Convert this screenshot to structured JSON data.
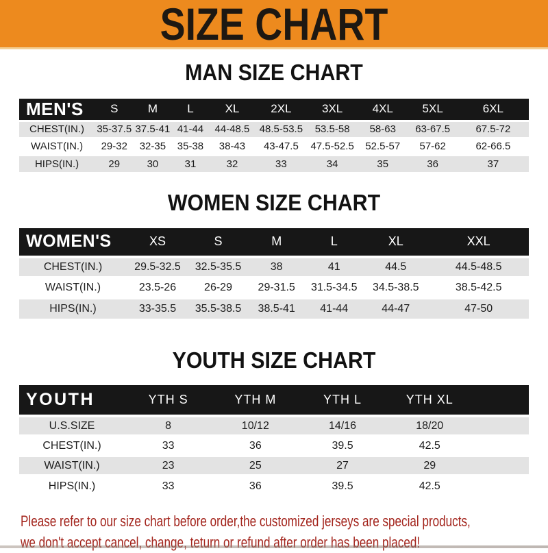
{
  "banner": {
    "title": "SIZE CHART"
  },
  "sections": [
    {
      "heading": "MAN SIZE CHART",
      "corner": "MEN'S",
      "columns": [
        "S",
        "M",
        "L",
        "XL",
        "2XL",
        "3XL",
        "4XL",
        "5XL",
        "6XL"
      ],
      "rows": [
        {
          "label": "CHEST(IN.)",
          "values": [
            "35-37.5",
            "37.5-41",
            "41-44",
            "44-48.5",
            "48.5-53.5",
            "53.5-58",
            "58-63",
            "63-67.5",
            "67.5-72"
          ]
        },
        {
          "label": "WAIST(IN.)",
          "values": [
            "29-32",
            "32-35",
            "35-38",
            "38-43",
            "43-47.5",
            "47.5-52.5",
            "52.5-57",
            "57-62",
            "62-66.5"
          ]
        },
        {
          "label": "HIPS(IN.)",
          "values": [
            "29",
            "30",
            "31",
            "32",
            "33",
            "34",
            "35",
            "36",
            "37"
          ]
        }
      ]
    },
    {
      "heading": "WOMEN SIZE CHART",
      "corner": "WOMEN'S",
      "columns": [
        "XS",
        "S",
        "M",
        "L",
        "XL",
        "XXL"
      ],
      "rows": [
        {
          "label": "CHEST(IN.)",
          "values": [
            "29.5-32.5",
            "32.5-35.5",
            "38",
            "41",
            "44.5",
            "44.5-48.5"
          ]
        },
        {
          "label": "WAIST(IN.)",
          "values": [
            "23.5-26",
            "26-29",
            "29-31.5",
            "31.5-34.5",
            "34.5-38.5",
            "38.5-42.5"
          ]
        },
        {
          "label": "HIPS(IN.)",
          "values": [
            "33-35.5",
            "35.5-38.5",
            "38.5-41",
            "41-44",
            "44-47",
            "47-50"
          ]
        }
      ]
    },
    {
      "heading": "YOUTH SIZE CHART",
      "corner": "YOUTH",
      "columns": [
        "YTH S",
        "YTH M",
        "YTH L",
        "YTH XL"
      ],
      "rows": [
        {
          "label": "U.S.SIZE",
          "values": [
            "8",
            "10/12",
            "14/16",
            "18/20"
          ]
        },
        {
          "label": "CHEST(IN.)",
          "values": [
            "33",
            "36",
            "39.5",
            "42.5"
          ]
        },
        {
          "label": "WAIST(IN.)",
          "values": [
            "23",
            "25",
            "27",
            "29"
          ]
        },
        {
          "label": "HIPS(IN.)",
          "values": [
            "33",
            "36",
            "39.5",
            "42.5"
          ]
        }
      ]
    }
  ],
  "footer": {
    "line1": "Please refer to our size chart before order,the customized jerseys are special products,",
    "line2": "we don't accept cancel, change, teturn or refund after order has been placed!"
  },
  "colors": {
    "banner_bg": "#ED8A1E",
    "header_bar": "#171717",
    "row_gray": "#e3e3e3",
    "footer_red": "#A3241C"
  }
}
